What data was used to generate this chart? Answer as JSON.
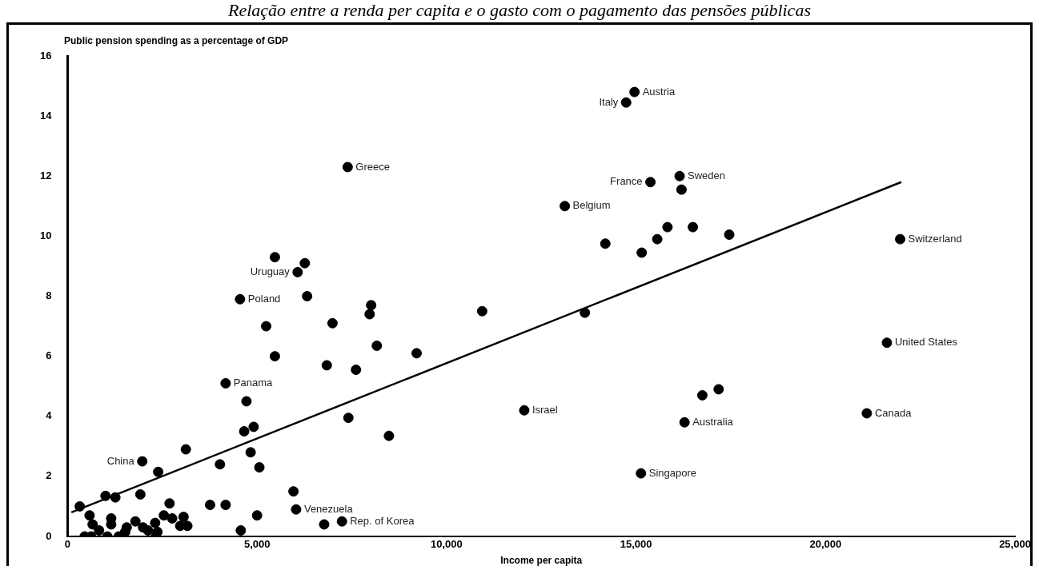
{
  "chart_data": {
    "type": "scatter",
    "title": "Relação entre a renda per capita e o gasto com o pagamento das pensões públicas",
    "ylabel": "Public pension spending as a percentage of GDP",
    "xlabel": "Income per capita",
    "xlim": [
      0,
      25000
    ],
    "xticks": [
      {
        "value": 0,
        "label": "0"
      },
      {
        "value": 5000,
        "label": "5,000"
      },
      {
        "value": 10000,
        "label": "10,000"
      },
      {
        "value": 15000,
        "label": "15,000"
      },
      {
        "value": 20000,
        "label": "20,000"
      },
      {
        "value": 25000,
        "label": "25,000"
      }
    ],
    "ylim": [
      0,
      16
    ],
    "yticks": [
      0,
      2,
      4,
      6,
      8,
      10,
      12,
      14,
      16
    ],
    "grid": false,
    "legend": false,
    "series": [
      {
        "type": "scatter",
        "marker": "circle",
        "color": "#000000",
        "x": [
          14960,
          14740,
          7390,
          15380,
          16150,
          16200,
          13120,
          21970,
          6070,
          4550,
          4170,
          21620,
          12050,
          21090,
          16280,
          15130,
          1970,
          6030,
          6770,
          7240,
          5470,
          6260,
          6320,
          8010,
          7970,
          10940,
          5240,
          6990,
          8160,
          9210,
          5470,
          6840,
          7610,
          4720,
          4910,
          4660,
          7410,
          8480,
          3120,
          4830,
          2390,
          4020,
          5060,
          5960,
          3760,
          4170,
          5000,
          4570,
          320,
          1000,
          1260,
          1920,
          2690,
          580,
          1150,
          1150,
          660,
          830,
          450,
          620,
          1050,
          1350,
          1560,
          1520,
          1790,
          1990,
          2120,
          2330,
          2310,
          2540,
          2760,
          3060,
          2970,
          3160,
          2370,
          14190,
          15150,
          15560,
          15830,
          16500,
          17460,
          13650,
          16750,
          17180
        ],
        "values": [
          14.8,
          14.45,
          12.3,
          11.8,
          12,
          11.55,
          11,
          9.9,
          8.8,
          7.9,
          5.1,
          6.45,
          4.2,
          4.1,
          3.8,
          2.1,
          2.5,
          0.9,
          0.4,
          0.5,
          9.3,
          9.1,
          8,
          7.7,
          7.4,
          7.5,
          7,
          7.1,
          6.35,
          6.1,
          6,
          5.7,
          5.55,
          4.5,
          3.65,
          3.5,
          3.95,
          3.35,
          2.9,
          2.8,
          2.15,
          2.4,
          2.3,
          1.5,
          1.05,
          1.05,
          0.7,
          0.2,
          1,
          1.35,
          1.3,
          1.4,
          1.1,
          0.7,
          0.6,
          0.4,
          0.4,
          0.2,
          0,
          0,
          0,
          0,
          0.3,
          0.15,
          0.5,
          0.3,
          0.2,
          0,
          0.45,
          0.7,
          0.6,
          0.65,
          0.35,
          0.35,
          0.15,
          9.75,
          9.45,
          9.9,
          10.3,
          10.3,
          10.05,
          7.45,
          4.7,
          4.9
        ]
      },
      {
        "type": "line",
        "color": "#000000",
        "x": [
          100,
          22000
        ],
        "values": [
          0.8,
          11.8
        ]
      }
    ],
    "annotations": [
      {
        "text": "Austria",
        "x": 14960,
        "y": 14.8
      },
      {
        "text": "Italy",
        "x": 14740,
        "y": 14.45
      },
      {
        "text": "Greece",
        "x": 7390,
        "y": 12.3
      },
      {
        "text": "France",
        "x": 15380,
        "y": 11.8
      },
      {
        "text": "Sweden",
        "x": 16150,
        "y": 12
      },
      {
        "text": "Belgium",
        "x": 13120,
        "y": 11
      },
      {
        "text": "Switzerland",
        "x": 21970,
        "y": 9.9
      },
      {
        "text": "Uruguay",
        "x": 6070,
        "y": 8.8
      },
      {
        "text": "Poland",
        "x": 4550,
        "y": 7.9
      },
      {
        "text": "Panama",
        "x": 4170,
        "y": 5.1
      },
      {
        "text": "United States",
        "x": 21620,
        "y": 6.45
      },
      {
        "text": "Israel",
        "x": 12050,
        "y": 4.2
      },
      {
        "text": "Canada",
        "x": 21090,
        "y": 4.1
      },
      {
        "text": "Australia",
        "x": 16280,
        "y": 3.8
      },
      {
        "text": "Singapore",
        "x": 15130,
        "y": 2.1
      },
      {
        "text": "China",
        "x": 1970,
        "y": 2.5
      },
      {
        "text": "Venezuela",
        "x": 6030,
        "y": 0.9
      },
      {
        "text": "Rep. of Korea",
        "x": 7240,
        "y": 0.5
      }
    ]
  }
}
